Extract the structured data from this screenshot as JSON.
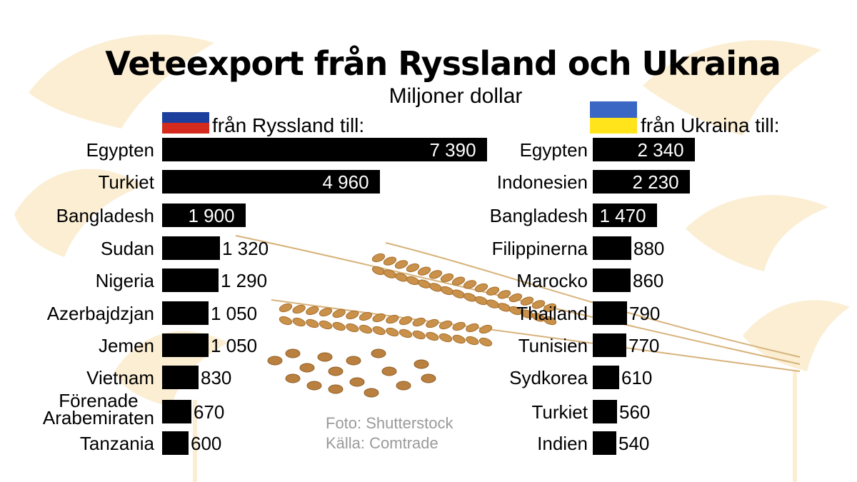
{
  "title": "Veteexport från Ryssland och Ukraina",
  "subtitle": "Miljoner dollar",
  "chart_data": [
    {
      "type": "bar",
      "orientation": "horizontal",
      "header": "från Ryssland till:",
      "flag_colors": [
        "#ffffff",
        "#1c3f9e",
        "#d52b1e"
      ],
      "categories": [
        "Egypten",
        "Turkiet",
        "Bangladesh",
        "Sudan",
        "Nigeria",
        "Azerbajdzjan",
        "Jemen",
        "Vietnam",
        "Förenade Arabemiraten",
        "Tanzania"
      ],
      "category_lines": [
        [
          "Egypten"
        ],
        [
          "Turkiet"
        ],
        [
          "Bangladesh"
        ],
        [
          "Sudan"
        ],
        [
          "Nigeria"
        ],
        [
          "Azerbajdzjan"
        ],
        [
          "Jemen"
        ],
        [
          "Vietnam"
        ],
        [
          "Förenade",
          "Arabemiraten"
        ],
        [
          "Tanzania"
        ]
      ],
      "values": [
        7390,
        4960,
        1900,
        1320,
        1290,
        1050,
        1050,
        830,
        670,
        600
      ],
      "value_labels": [
        "7 390",
        "4 960",
        "1 900",
        "1 320",
        "1 290",
        "1 050",
        "1 050",
        "830",
        "670",
        "600"
      ]
    },
    {
      "type": "bar",
      "orientation": "horizontal",
      "header": "från Ukraina till:",
      "flag_colors": [
        "#3a66c4",
        "#ffe41c"
      ],
      "categories": [
        "Egypten",
        "Indonesien",
        "Bangladesh",
        "Filippinerna",
        "Marocko",
        "Thailand",
        "Tunisien",
        "Sydkorea",
        "Turkiet",
        "Indien"
      ],
      "category_lines": [
        [
          "Egypten"
        ],
        [
          "Indonesien"
        ],
        [
          "Bangladesh"
        ],
        [
          "Filippinerna"
        ],
        [
          "Marocko"
        ],
        [
          "Thailand"
        ],
        [
          "Tunisien"
        ],
        [
          "Sydkorea"
        ],
        [
          "Turkiet"
        ],
        [
          "Indien"
        ]
      ],
      "values": [
        2340,
        2230,
        1470,
        880,
        860,
        790,
        770,
        610,
        560,
        540
      ],
      "value_labels": [
        "2 340",
        "2 230",
        "1 470",
        "880",
        "860",
        "790",
        "770",
        "610",
        "560",
        "540"
      ]
    }
  ],
  "credits": [
    "Foto: Shutterstock",
    "Källa: Comtrade"
  ],
  "colors": {
    "bar": "#000000",
    "label_inside": "#ffffff",
    "label_outside": "#000000",
    "background_motif": "#fbeed3",
    "credit_text": "#9a9a9a"
  }
}
